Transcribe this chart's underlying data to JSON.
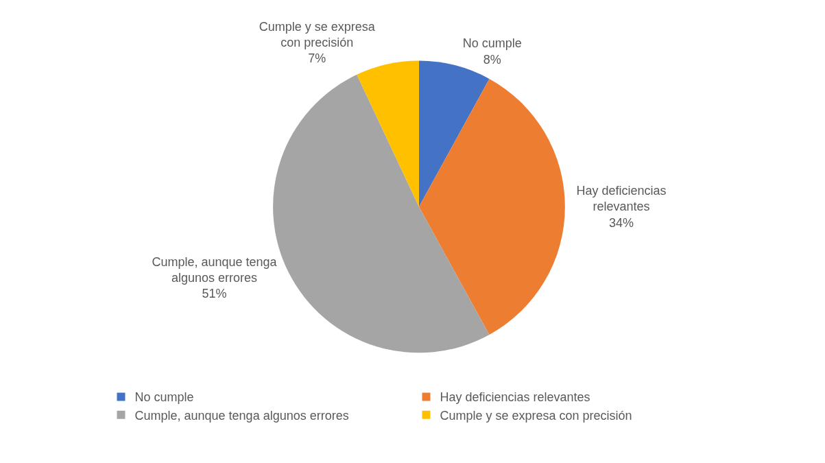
{
  "chart_data": {
    "type": "pie",
    "categories": [
      "No cumple",
      "Hay deficiencias relevantes",
      "Cumple, aunque tenga algunos errores",
      "Cumple y se expresa con precisión"
    ],
    "values": [
      8,
      34,
      51,
      7
    ],
    "colors": [
      "#4472c4",
      "#ed7d31",
      "#a5a5a5",
      "#ffc000"
    ],
    "value_labels": [
      "8%",
      "34%",
      "51%",
      "7%"
    ],
    "legend": "bottom"
  }
}
